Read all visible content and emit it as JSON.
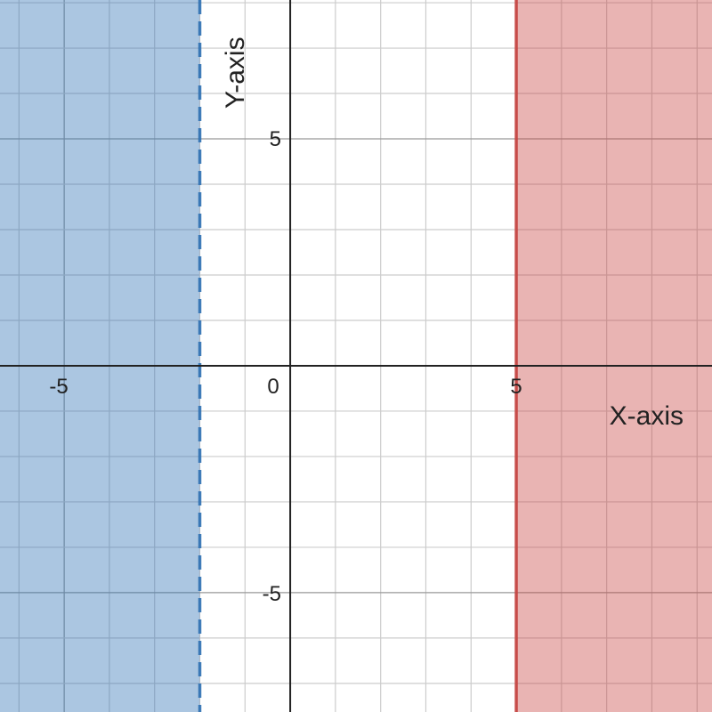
{
  "chart_data": {
    "type": "area",
    "xlabel": "X-axis",
    "ylabel": "Y-axis",
    "xlim": [
      -6.42,
      9.33
    ],
    "ylim": [
      -7.63,
      8.06
    ],
    "grid": true,
    "x_ticks": [
      "-5",
      "0",
      "5"
    ],
    "y_ticks": [
      "5",
      "-5"
    ],
    "regions": [
      {
        "inequality": "x < -2",
        "boundary_x": -2,
        "side": "left",
        "boundary_style": "dashed",
        "color": "#2d70b3"
      },
      {
        "inequality": "x >= 5",
        "boundary_x": 5,
        "side": "right",
        "boundary_style": "solid",
        "color": "#c74440"
      }
    ]
  }
}
